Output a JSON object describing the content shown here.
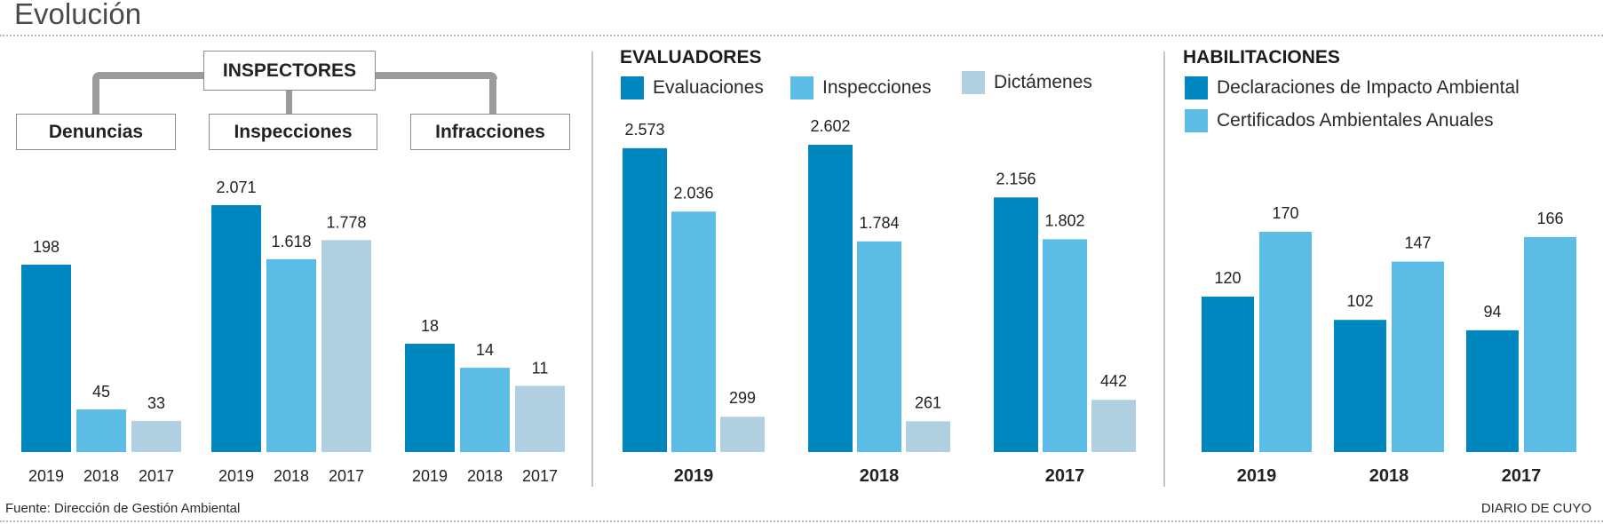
{
  "title": "Evolución",
  "source": "Fuente: Dirección de Gestión Ambiental",
  "credit": "DIARIO DE CUYO",
  "colors": {
    "dark_blue": "#0087bf",
    "light_blue": "#5bbce6",
    "pale_blue": "#b0cfe1",
    "connector_gray": "#9b9b9b",
    "divider_gray": "#c4c4c4"
  },
  "inspectores": {
    "header": "INSPECTORES",
    "subheaders": [
      "Denuncias",
      "Inspecciones",
      "Infracciones"
    ]
  },
  "evaluadores": {
    "title": "EVALUADORES",
    "legend": [
      "Evaluaciones",
      "Inspecciones",
      "Dictámenes"
    ]
  },
  "habilitaciones": {
    "title": "HABILITACIONES",
    "legend": [
      "Declaraciones de Impacto Ambiental",
      "Certificados Ambientales Anuales"
    ]
  },
  "chart_data": [
    {
      "type": "bar",
      "title": "INSPECTORES - Denuncias",
      "categories": [
        "2019",
        "2018",
        "2017"
      ],
      "values": [
        198,
        45,
        33
      ],
      "value_labels": [
        "198",
        "45",
        "33"
      ],
      "ylim": [
        0,
        198
      ]
    },
    {
      "type": "bar",
      "title": "INSPECTORES - Inspecciones",
      "categories": [
        "2019",
        "2018",
        "2017"
      ],
      "values": [
        2071,
        1618,
        1778
      ],
      "value_labels": [
        "2.071",
        "1.618",
        "1.778"
      ],
      "ylim": [
        0,
        2071
      ]
    },
    {
      "type": "bar",
      "title": "INSPECTORES - Infracciones",
      "categories": [
        "2019",
        "2018",
        "2017"
      ],
      "values": [
        18,
        14,
        11
      ],
      "value_labels": [
        "18",
        "14",
        "11"
      ],
      "ylim": [
        0,
        18
      ]
    },
    {
      "type": "bar",
      "title": "EVALUADORES",
      "categories": [
        "2019",
        "2018",
        "2017"
      ],
      "series": [
        {
          "name": "Evaluaciones",
          "values": [
            2573,
            2602,
            2156
          ],
          "value_labels": [
            "2.573",
            "2.602",
            "2.156"
          ]
        },
        {
          "name": "Inspecciones",
          "values": [
            2036,
            1784,
            1802
          ],
          "value_labels": [
            "2.036",
            "1.784",
            "1.802"
          ]
        },
        {
          "name": "Dictámenes",
          "values": [
            299,
            261,
            442
          ],
          "value_labels": [
            "299",
            "261",
            "442"
          ]
        }
      ],
      "legend": "top-left",
      "ylim": [
        0,
        2602
      ]
    },
    {
      "type": "bar",
      "title": "HABILITACIONES",
      "categories": [
        "2019",
        "2018",
        "2017"
      ],
      "series": [
        {
          "name": "Declaraciones de Impacto Ambiental",
          "values": [
            120,
            102,
            94
          ],
          "value_labels": [
            "120",
            "102",
            "94"
          ]
        },
        {
          "name": "Certificados Ambientales Anuales",
          "values": [
            170,
            147,
            166
          ],
          "value_labels": [
            "170",
            "147",
            "166"
          ]
        }
      ],
      "legend": "top-left",
      "ylim": [
        0,
        170
      ]
    }
  ]
}
